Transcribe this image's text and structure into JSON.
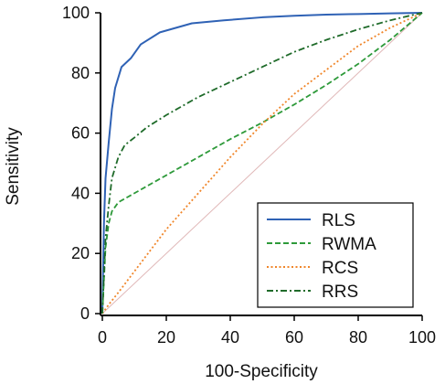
{
  "chart_data": {
    "type": "line",
    "xlabel": "100-Specificity",
    "ylabel": "Sensitivity",
    "xlim": [
      0,
      100
    ],
    "ylim": [
      0,
      100
    ],
    "xticks": [
      0,
      20,
      40,
      60,
      80,
      100
    ],
    "yticks": [
      0,
      20,
      40,
      60,
      80,
      100
    ],
    "grid": false,
    "legend_position": "bottom-right",
    "reference_line": {
      "x": [
        0,
        100
      ],
      "y": [
        0,
        100
      ],
      "color": "#e0b8b8"
    },
    "series": [
      {
        "name": "RLS",
        "color": "#2f62b5",
        "style": "solid",
        "x": [
          0,
          0.5,
          1,
          2,
          3,
          4,
          6,
          9,
          12,
          18,
          28,
          38,
          50,
          60,
          70,
          80,
          90,
          100
        ],
        "y": [
          0,
          30,
          45,
          57,
          68,
          75,
          82,
          85,
          89.5,
          93.5,
          96.5,
          97.5,
          98.5,
          99,
          99.4,
          99.6,
          99.8,
          100
        ]
      },
      {
        "name": "RWMA",
        "color": "#2e9a3a",
        "style": "dashed",
        "x": [
          0,
          1,
          2,
          3,
          5,
          10,
          20,
          30,
          40,
          50,
          60,
          70,
          80,
          90,
          100
        ],
        "y": [
          0,
          22,
          30,
          34,
          37,
          40,
          46,
          52,
          58,
          63.5,
          69.5,
          76,
          83,
          91,
          100
        ]
      },
      {
        "name": "RCS",
        "color": "#f0862a",
        "style": "dotted",
        "x": [
          0,
          2,
          5,
          10,
          15,
          20,
          25,
          30,
          40,
          50,
          60,
          70,
          80,
          90,
          100
        ],
        "y": [
          0,
          3,
          7,
          14,
          21,
          28,
          34,
          40,
          52,
          63,
          73,
          81,
          89,
          95,
          100
        ]
      },
      {
        "name": "RRS",
        "color": "#1f6b2a",
        "style": "dashdot",
        "x": [
          0,
          1,
          2,
          3,
          5,
          7,
          10,
          14,
          20,
          30,
          40,
          50,
          60,
          70,
          80,
          90,
          100
        ],
        "y": [
          0,
          25,
          36,
          45,
          52,
          56,
          58.5,
          62,
          66,
          72,
          77,
          82,
          87,
          91,
          94.5,
          97.5,
          100
        ]
      }
    ]
  }
}
